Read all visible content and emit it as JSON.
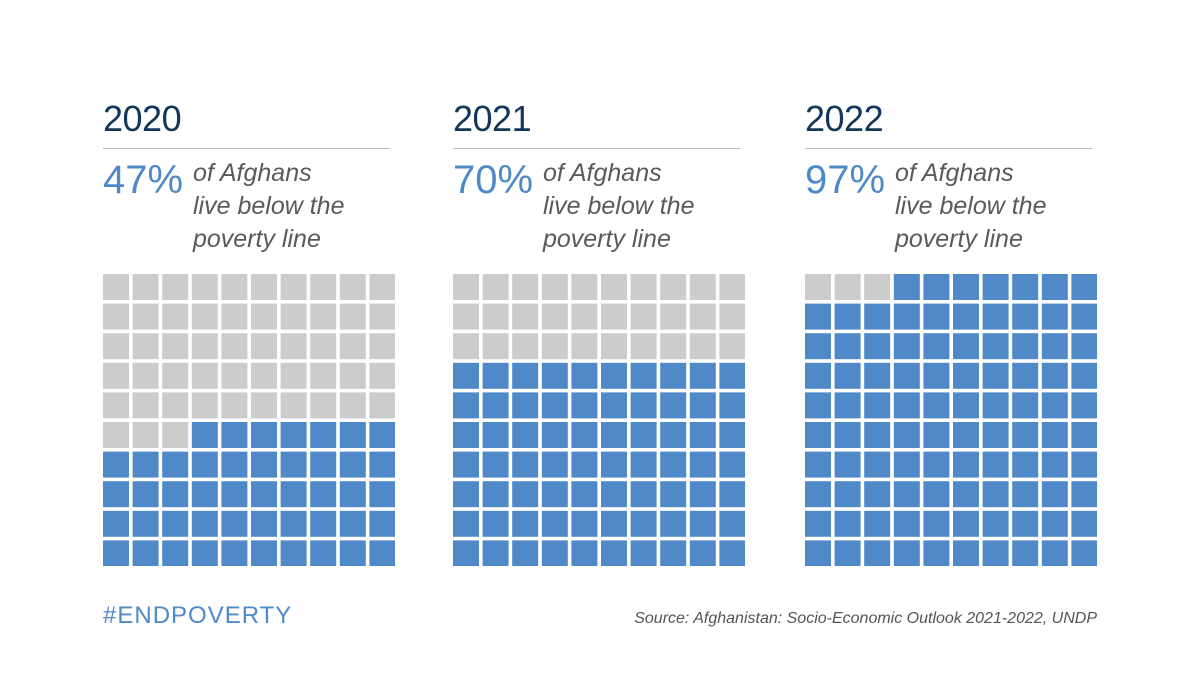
{
  "chart_data": [
    {
      "type": "waffle",
      "title": "2020",
      "value": 47,
      "value_label": "47%",
      "description": [
        "of Afghans",
        "live below the",
        "poverty line"
      ],
      "grid": {
        "rows": 10,
        "cols": 10
      }
    },
    {
      "type": "waffle",
      "title": "2021",
      "value": 70,
      "value_label": "70%",
      "description": [
        "of Afghans",
        "live below the",
        "poverty line"
      ],
      "grid": {
        "rows": 10,
        "cols": 10
      }
    },
    {
      "type": "waffle",
      "title": "2022",
      "value": 97,
      "value_label": "97%",
      "description": [
        "of Afghans",
        "live below the",
        "poverty line"
      ],
      "grid": {
        "rows": 10,
        "cols": 10
      }
    }
  ],
  "colors": {
    "filled": "#4f89c8",
    "empty": "#cccccc",
    "year": "#14365a"
  },
  "footer": {
    "hashtag": "#ENDPOVERTY",
    "source": "Source: Afghanistan: Socio-Economic Outlook 2021-2022, UNDP"
  }
}
